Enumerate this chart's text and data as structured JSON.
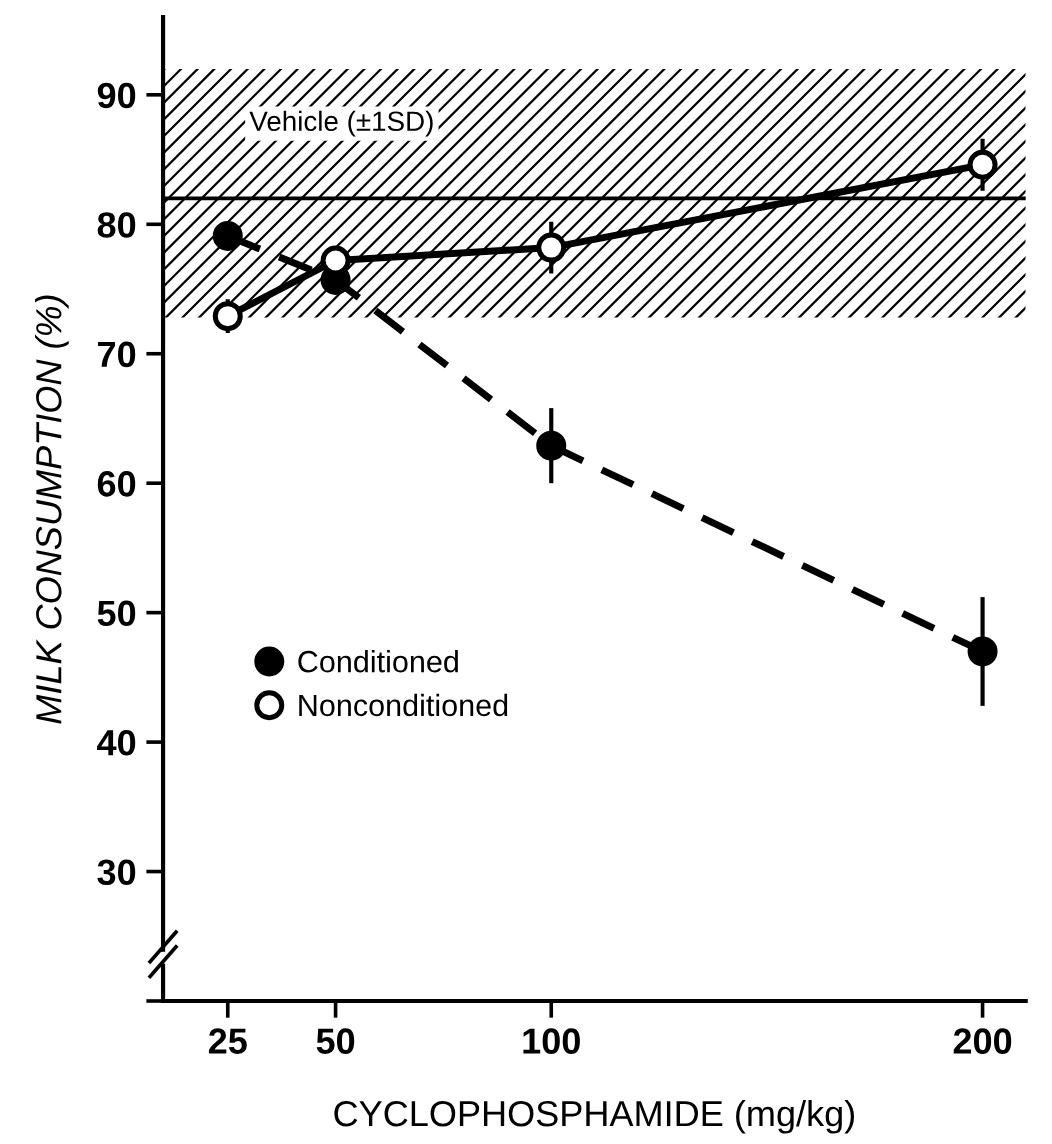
{
  "chart_data": {
    "type": "line",
    "xlabel": "CYCLOPHOSPHAMIDE (mg/kg)",
    "ylabel": "MILK CONSUMPTION (%)",
    "x": [
      25,
      50,
      100,
      200
    ],
    "series": [
      {
        "name": "Conditioned",
        "color": "#000000",
        "values": [
          79.1,
          75.7,
          62.9,
          47.0
        ],
        "errors": [
          1,
          1,
          2.9,
          4.2
        ],
        "marker": "circle",
        "line_style": "dashed"
      },
      {
        "name": "Nonconditioned",
        "color": "#000000",
        "values": [
          72.9,
          77.2,
          78.2,
          84.6
        ],
        "errors": [
          1.3,
          1,
          2,
          2
        ],
        "marker": "circle",
        "line_style": "solid"
      }
    ],
    "xlim": [
      10,
      210
    ],
    "xticks": [
      25,
      50,
      100,
      200
    ],
    "ylim": [
      20,
      96
    ],
    "yticks": [
      {
        "value": 20,
        "label": null
      },
      30,
      40,
      50,
      60,
      70,
      80,
      90
    ],
    "ref_lines": [
      {
        "axis": "y",
        "value": 82,
        "color": "#000000"
      }
    ],
    "bands": [
      {
        "axis": "y",
        "from": 72.8,
        "to": 92,
        "label": "Vehicle (±1SD)"
      }
    ],
    "legend": "left",
    "grid": false
  }
}
